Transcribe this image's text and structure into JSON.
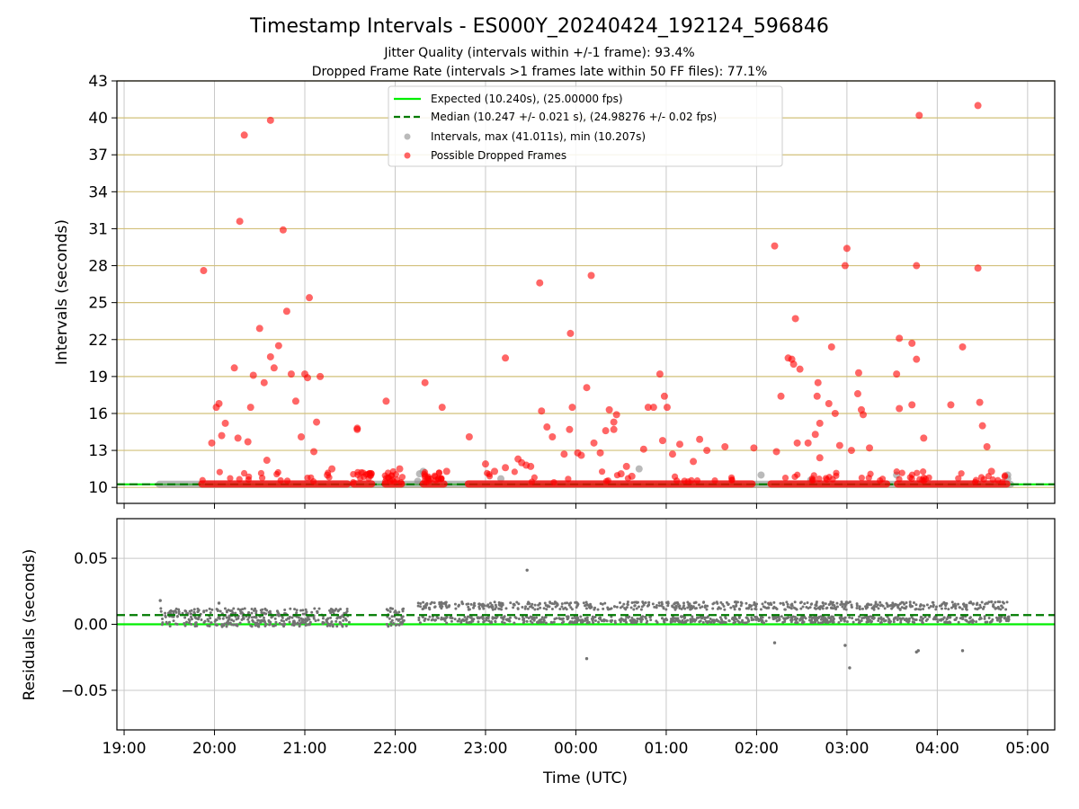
{
  "title": "Timestamp Intervals - ES000Y_20240424_192124_596846",
  "subtitle_1": "Jitter Quality (intervals within +/-1 frame): 93.4%",
  "subtitle_2": "Dropped Frame Rate (intervals >1 frames late within 50 FF files): 77.1%",
  "colors": {
    "expected": "#00ee00",
    "median": "#007a00",
    "intervals": "#8c8c8c",
    "dropped": "#ff0000",
    "hgrid_top": "#d2c07a",
    "grid": "#c8c8c8",
    "residual_points": "#737373"
  },
  "chart_data": [
    {
      "type": "scatter",
      "ylabel": "Intervals (seconds)",
      "xlim": [
        18.92,
        29.3
      ],
      "ylim": [
        8.7,
        43
      ],
      "grid": true,
      "legend_position": "top-center",
      "yticks": [
        10,
        13,
        16,
        19,
        22,
        25,
        28,
        31,
        34,
        37,
        40,
        43
      ],
      "ytick_labels": [
        "10",
        "13",
        "16",
        "19",
        "22",
        "25",
        "28",
        "31",
        "34",
        "37",
        "40",
        "43"
      ],
      "legend": [
        "Expected (10.240s), (25.00000 fps)",
        "Median (10.247 +/- 0.021 s), (24.98276 +/- 0.02 fps)",
        "Intervals, max (41.011s), min (10.207s)",
        "Possible Dropped Frames"
      ],
      "expected_line": 10.24,
      "median_line": 10.247,
      "gray_outliers": [
        [
          22.27,
          11.1
        ],
        [
          22.31,
          11.3
        ],
        [
          22.25,
          10.5
        ],
        [
          23.17,
          10.7
        ],
        [
          24.7,
          11.5
        ],
        [
          26.05,
          11.0
        ],
        [
          26.6,
          10.6
        ],
        [
          27.55,
          11.0
        ],
        [
          28.78,
          11.0
        ],
        [
          28.78,
          10.7
        ]
      ],
      "dropped_outliers": [
        [
          19.88,
          27.6
        ],
        [
          19.97,
          13.6
        ],
        [
          20.02,
          16.5
        ],
        [
          20.05,
          16.8
        ],
        [
          20.08,
          14.2
        ],
        [
          20.12,
          15.2
        ],
        [
          20.22,
          19.7
        ],
        [
          20.26,
          14.0
        ],
        [
          20.28,
          31.6
        ],
        [
          20.33,
          38.6
        ],
        [
          20.37,
          13.7
        ],
        [
          20.4,
          16.5
        ],
        [
          20.43,
          19.1
        ],
        [
          20.5,
          22.9
        ],
        [
          20.55,
          18.5
        ],
        [
          20.58,
          12.2
        ],
        [
          20.62,
          20.6
        ],
        [
          20.62,
          39.8
        ],
        [
          20.66,
          19.7
        ],
        [
          20.71,
          21.5
        ],
        [
          20.76,
          30.9
        ],
        [
          20.8,
          24.3
        ],
        [
          20.85,
          19.2
        ],
        [
          20.9,
          17.0
        ],
        [
          20.96,
          14.1
        ],
        [
          21.0,
          19.2
        ],
        [
          21.03,
          18.9
        ],
        [
          21.05,
          25.4
        ],
        [
          21.1,
          12.9
        ],
        [
          21.13,
          15.3
        ],
        [
          21.17,
          19.0
        ],
        [
          21.25,
          11.0
        ],
        [
          21.3,
          11.5
        ],
        [
          21.58,
          14.8
        ],
        [
          21.58,
          14.7
        ],
        [
          21.9,
          17.0
        ],
        [
          22.05,
          11.5
        ],
        [
          22.33,
          18.5
        ],
        [
          22.52,
          16.5
        ],
        [
          22.57,
          11.3
        ],
        [
          22.82,
          14.1
        ],
        [
          23.0,
          11.9
        ],
        [
          23.1,
          11.3
        ],
        [
          23.22,
          20.5
        ],
        [
          23.22,
          11.6
        ],
        [
          23.36,
          12.3
        ],
        [
          23.4,
          12.0
        ],
        [
          23.45,
          11.8
        ],
        [
          23.5,
          11.7
        ],
        [
          23.6,
          26.6
        ],
        [
          23.62,
          16.2
        ],
        [
          23.68,
          14.9
        ],
        [
          23.74,
          14.1
        ],
        [
          23.87,
          12.7
        ],
        [
          23.93,
          14.7
        ],
        [
          23.94,
          22.5
        ],
        [
          23.96,
          16.5
        ],
        [
          24.02,
          12.8
        ],
        [
          24.06,
          12.6
        ],
        [
          24.12,
          18.1
        ],
        [
          24.17,
          27.2
        ],
        [
          24.2,
          13.6
        ],
        [
          24.27,
          12.8
        ],
        [
          24.33,
          14.6
        ],
        [
          24.37,
          16.3
        ],
        [
          24.42,
          15.3
        ],
        [
          24.45,
          15.9
        ],
        [
          24.42,
          14.7
        ],
        [
          24.5,
          11.1
        ],
        [
          24.56,
          11.7
        ],
        [
          24.62,
          10.9
        ],
        [
          24.75,
          13.1
        ],
        [
          24.8,
          16.5
        ],
        [
          24.86,
          16.5
        ],
        [
          24.93,
          19.2
        ],
        [
          24.96,
          13.8
        ],
        [
          24.98,
          17.4
        ],
        [
          25.01,
          16.5
        ],
        [
          25.07,
          12.7
        ],
        [
          25.15,
          13.5
        ],
        [
          25.3,
          12.1
        ],
        [
          25.37,
          13.9
        ],
        [
          25.45,
          13.0
        ],
        [
          25.65,
          13.3
        ],
        [
          25.97,
          13.2
        ],
        [
          26.2,
          29.6
        ],
        [
          26.22,
          12.9
        ],
        [
          26.27,
          17.4
        ],
        [
          26.35,
          20.5
        ],
        [
          26.39,
          20.4
        ],
        [
          26.41,
          20.0
        ],
        [
          26.43,
          23.7
        ],
        [
          26.45,
          13.6
        ],
        [
          26.48,
          19.6
        ],
        [
          26.57,
          13.6
        ],
        [
          26.65,
          14.3
        ],
        [
          26.67,
          17.4
        ],
        [
          26.68,
          18.5
        ],
        [
          26.7,
          15.2
        ],
        [
          26.7,
          12.4
        ],
        [
          26.8,
          16.8
        ],
        [
          26.83,
          21.4
        ],
        [
          26.87,
          16.0
        ],
        [
          26.92,
          13.4
        ],
        [
          26.98,
          28.0
        ],
        [
          27.0,
          29.4
        ],
        [
          27.05,
          13.0
        ],
        [
          27.12,
          17.6
        ],
        [
          27.13,
          19.3
        ],
        [
          27.16,
          16.3
        ],
        [
          27.18,
          15.9
        ],
        [
          27.25,
          13.2
        ],
        [
          27.55,
          19.2
        ],
        [
          27.58,
          22.1
        ],
        [
          27.58,
          16.4
        ],
        [
          27.72,
          21.7
        ],
        [
          27.72,
          16.7
        ],
        [
          27.77,
          28.0
        ],
        [
          27.77,
          20.4
        ],
        [
          27.8,
          40.2
        ],
        [
          27.85,
          14.0
        ],
        [
          28.15,
          16.7
        ],
        [
          28.28,
          21.4
        ],
        [
          28.45,
          41.0
        ],
        [
          28.45,
          27.8
        ],
        [
          28.47,
          16.9
        ],
        [
          28.5,
          15.0
        ],
        [
          28.55,
          13.3
        ],
        [
          28.6,
          11.3
        ]
      ],
      "dropped_baseline_segments": [
        [
          19.85,
          21.48
        ],
        [
          21.53,
          21.75
        ],
        [
          21.88,
          22.08
        ],
        [
          22.3,
          22.55
        ],
        [
          22.8,
          25.96
        ],
        [
          26.15,
          27.45
        ],
        [
          27.55,
          28.78
        ]
      ],
      "interval_baseline_segment": [
        19.38,
        28.82
      ]
    },
    {
      "type": "scatter",
      "xlabel": "Time (UTC)",
      "ylabel": "Residuals (seconds)",
      "xlim": [
        18.92,
        29.3
      ],
      "ylim": [
        -0.08,
        0.08
      ],
      "grid": true,
      "yticks": [
        -0.05,
        0.0,
        0.05
      ],
      "ytick_labels": [
        "−0.05",
        "0.00",
        "0.05"
      ],
      "xticks": [
        19,
        20,
        21,
        22,
        23,
        24,
        25,
        26,
        27,
        28,
        29
      ],
      "xtick_labels": [
        "19:00",
        "20:00",
        "21:00",
        "22:00",
        "23:00",
        "00:00",
        "01:00",
        "02:00",
        "03:00",
        "04:00",
        "05:00"
      ],
      "expected_line": 0.0,
      "median_line": 0.007,
      "band_early": {
        "x_range": [
          19.4,
          22.1
        ],
        "gaps": [
          [
            21.5,
            21.9
          ]
        ],
        "y_range": [
          -0.002,
          0.012
        ]
      },
      "band_late": {
        "x_range": [
          22.25,
          28.8
        ],
        "y_low_range": [
          0.001,
          0.006
        ],
        "y_high_range": [
          0.011,
          0.017
        ]
      },
      "outliers": [
        [
          19.4,
          0.018
        ],
        [
          20.05,
          0.016
        ],
        [
          21.95,
          0.012
        ],
        [
          22.0,
          0.009
        ],
        [
          23.46,
          0.041
        ],
        [
          24.12,
          -0.026
        ],
        [
          26.2,
          -0.014
        ],
        [
          26.98,
          -0.016
        ],
        [
          27.03,
          -0.033
        ],
        [
          27.77,
          -0.021
        ],
        [
          27.79,
          -0.02
        ],
        [
          28.28,
          -0.02
        ],
        [
          28.6,
          0.017
        ]
      ]
    }
  ]
}
